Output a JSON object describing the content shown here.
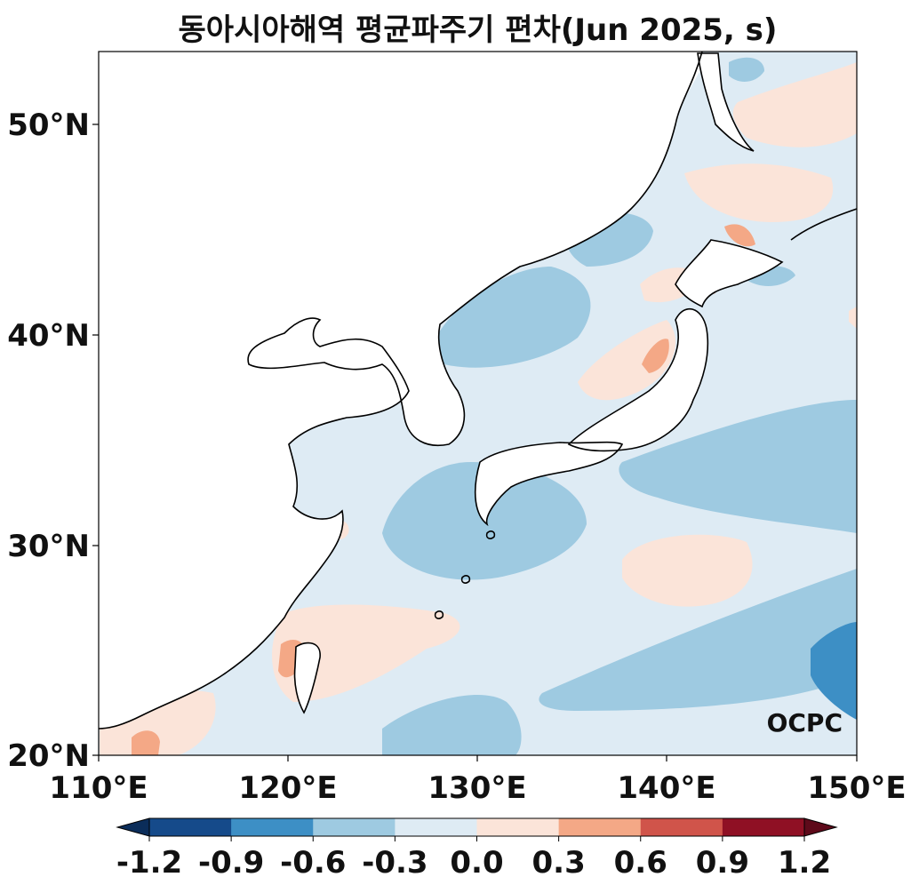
{
  "title": "동아시아해역 평균파주기 편차(Jun 2025, s)",
  "map": {
    "lon_range": [
      110,
      150
    ],
    "lat_range": [
      20,
      53.5
    ],
    "lon_ticks": [
      "110°E",
      "120°E",
      "130°E",
      "140°E",
      "150°E"
    ],
    "lat_ticks": [
      "20°N",
      "30°N",
      "40°N",
      "50°N"
    ],
    "watermark": "OCPC"
  },
  "colorbar": {
    "ticks": [
      "-1.2",
      "-0.9",
      "-0.6",
      "-0.3",
      "0.0",
      "0.3",
      "0.6",
      "0.9",
      "1.2"
    ],
    "colors": [
      "#154a8a",
      "#3d8fc5",
      "#9ecae1",
      "#deebf4",
      "#fbe4d9",
      "#f4a886",
      "#d0544a",
      "#8f1024"
    ],
    "under_color": "#0b2d5a",
    "over_color": "#5e0a1a"
  }
}
